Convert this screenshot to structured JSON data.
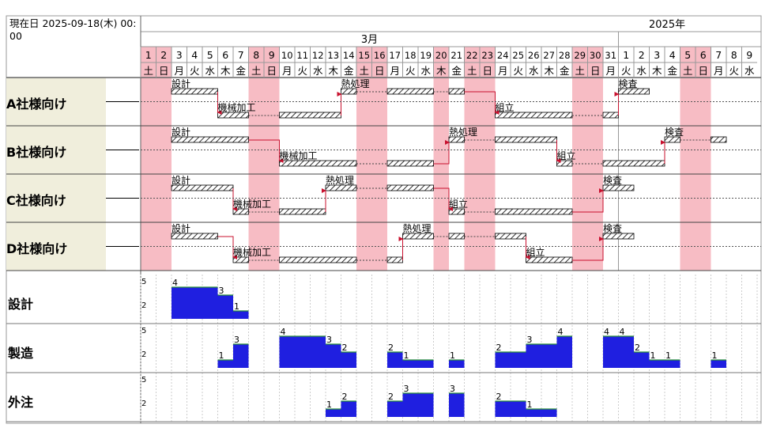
{
  "header": {
    "current_date": "現在日 2025-09-18(木) 00:00",
    "year_label": "2025年",
    "month_label": "3月"
  },
  "days": [
    {
      "d": "1",
      "w": "土",
      "holiday": true
    },
    {
      "d": "2",
      "w": "日",
      "holiday": true
    },
    {
      "d": "3",
      "w": "月",
      "holiday": false
    },
    {
      "d": "4",
      "w": "火",
      "holiday": false
    },
    {
      "d": "5",
      "w": "水",
      "holiday": false
    },
    {
      "d": "6",
      "w": "木",
      "holiday": false
    },
    {
      "d": "7",
      "w": "金",
      "holiday": false
    },
    {
      "d": "8",
      "w": "土",
      "holiday": true
    },
    {
      "d": "9",
      "w": "日",
      "holiday": true
    },
    {
      "d": "10",
      "w": "月",
      "holiday": false
    },
    {
      "d": "11",
      "w": "火",
      "holiday": false
    },
    {
      "d": "12",
      "w": "水",
      "holiday": false
    },
    {
      "d": "13",
      "w": "木",
      "holiday": false
    },
    {
      "d": "14",
      "w": "金",
      "holiday": false
    },
    {
      "d": "15",
      "w": "土",
      "holiday": true
    },
    {
      "d": "16",
      "w": "日",
      "holiday": true
    },
    {
      "d": "17",
      "w": "月",
      "holiday": false
    },
    {
      "d": "18",
      "w": "火",
      "holiday": false
    },
    {
      "d": "19",
      "w": "水",
      "holiday": false
    },
    {
      "d": "20",
      "w": "木",
      "holiday": true
    },
    {
      "d": "21",
      "w": "金",
      "holiday": false
    },
    {
      "d": "22",
      "w": "土",
      "holiday": true
    },
    {
      "d": "23",
      "w": "日",
      "holiday": true
    },
    {
      "d": "24",
      "w": "月",
      "holiday": false
    },
    {
      "d": "25",
      "w": "火",
      "holiday": false
    },
    {
      "d": "26",
      "w": "水",
      "holiday": false
    },
    {
      "d": "27",
      "w": "木",
      "holiday": false
    },
    {
      "d": "28",
      "w": "金",
      "holiday": false
    },
    {
      "d": "29",
      "w": "土",
      "holiday": true
    },
    {
      "d": "30",
      "w": "日",
      "holiday": true
    },
    {
      "d": "31",
      "w": "月",
      "holiday": false
    },
    {
      "d": "1",
      "w": "火",
      "holiday": false
    },
    {
      "d": "2",
      "w": "水",
      "holiday": false
    },
    {
      "d": "3",
      "w": "木",
      "holiday": false
    },
    {
      "d": "4",
      "w": "金",
      "holiday": false
    },
    {
      "d": "5",
      "w": "土",
      "holiday": true
    },
    {
      "d": "6",
      "w": "日",
      "holiday": true
    },
    {
      "d": "7",
      "w": "月",
      "holiday": false
    },
    {
      "d": "8",
      "w": "火",
      "holiday": false
    },
    {
      "d": "9",
      "w": "水",
      "holiday": false
    }
  ],
  "orders": [
    {
      "label": "A社様向け",
      "tasks": [
        {
          "name": "設計",
          "lane": 0,
          "segs": [
            [
              2,
              5
            ]
          ],
          "label_at": 2
        },
        {
          "name": "機械加工",
          "lane": 1,
          "segs": [
            [
              5,
              7
            ],
            [
              9,
              13
            ]
          ],
          "label_at": 5
        },
        {
          "name": "熱処理",
          "lane": 0,
          "segs": [
            [
              13,
              14
            ],
            [
              16,
              19
            ],
            [
              20,
              21
            ]
          ],
          "label_at": 13
        },
        {
          "name": "組立",
          "lane": 1,
          "segs": [
            [
              23,
              28
            ],
            [
              30,
              31
            ]
          ],
          "label_at": 23
        },
        {
          "name": "検査",
          "lane": 0,
          "segs": [
            [
              31,
              33
            ]
          ],
          "label_at": 31
        }
      ]
    },
    {
      "label": "B社様向け",
      "tasks": [
        {
          "name": "設計",
          "lane": 0,
          "segs": [
            [
              2,
              7
            ]
          ],
          "label_at": 2
        },
        {
          "name": "機械加工",
          "lane": 1,
          "segs": [
            [
              9,
              14
            ],
            [
              16,
              19
            ]
          ],
          "label_at": 9
        },
        {
          "name": "熱処理",
          "lane": 0,
          "segs": [
            [
              20,
              21
            ],
            [
              23,
              27
            ]
          ],
          "label_at": 20
        },
        {
          "name": "組立",
          "lane": 1,
          "segs": [
            [
              27,
              28
            ],
            [
              30,
              34
            ]
          ],
          "label_at": 27
        },
        {
          "name": "検査",
          "lane": 0,
          "segs": [
            [
              34,
              35
            ],
            [
              37,
              38
            ]
          ],
          "label_at": 34
        }
      ]
    },
    {
      "label": "C社様向け",
      "tasks": [
        {
          "name": "設計",
          "lane": 0,
          "segs": [
            [
              2,
              6
            ]
          ],
          "label_at": 2
        },
        {
          "name": "機械加工",
          "lane": 1,
          "segs": [
            [
              6,
              7
            ],
            [
              9,
              12
            ]
          ],
          "label_at": 6
        },
        {
          "name": "熱処理",
          "lane": 0,
          "segs": [
            [
              12,
              14
            ],
            [
              16,
              19
            ]
          ],
          "label_at": 12
        },
        {
          "name": "組立",
          "lane": 1,
          "segs": [
            [
              20,
              21
            ],
            [
              23,
              28
            ]
          ],
          "label_at": 20
        },
        {
          "name": "検査",
          "lane": 0,
          "segs": [
            [
              30,
              32
            ]
          ],
          "label_at": 30
        }
      ]
    },
    {
      "label": "D社様向け",
      "tasks": [
        {
          "name": "設計",
          "lane": 0,
          "segs": [
            [
              2,
              5
            ]
          ],
          "label_at": 2
        },
        {
          "name": "機械加工",
          "lane": 1,
          "segs": [
            [
              6,
              7
            ],
            [
              9,
              14
            ],
            [
              16,
              17
            ]
          ],
          "label_at": 6
        },
        {
          "name": "熱処理",
          "lane": 0,
          "segs": [
            [
              17,
              19
            ],
            [
              20,
              21
            ],
            [
              23,
              25
            ]
          ],
          "label_at": 17
        },
        {
          "name": "組立",
          "lane": 1,
          "segs": [
            [
              25,
              28
            ]
          ],
          "label_at": 25
        },
        {
          "name": "検査",
          "lane": 0,
          "segs": [
            [
              30,
              32
            ]
          ],
          "label_at": 30
        }
      ]
    }
  ],
  "load": [
    {
      "label": "設計",
      "ticks": [
        "5",
        "2"
      ],
      "levels": [
        [
          2,
          5,
          4
        ],
        [
          5,
          6,
          3
        ],
        [
          6,
          7,
          1
        ]
      ],
      "annotations": [
        {
          "at": 2,
          "text": "4"
        },
        {
          "at": 5,
          "text": "3"
        },
        {
          "at": 6,
          "text": "1"
        }
      ]
    },
    {
      "label": "製造",
      "ticks": [
        "5",
        "2"
      ],
      "levels": [
        [
          5,
          6,
          1
        ],
        [
          6,
          7,
          3
        ],
        [
          9,
          12,
          4
        ],
        [
          12,
          13,
          3
        ],
        [
          13,
          14,
          2
        ],
        [
          16,
          17,
          2
        ],
        [
          17,
          19,
          1
        ],
        [
          20,
          21,
          1
        ],
        [
          23,
          25,
          2
        ],
        [
          25,
          27,
          3
        ],
        [
          27,
          28,
          4
        ],
        [
          30,
          31,
          4
        ],
        [
          31,
          32,
          4
        ],
        [
          32,
          33,
          2
        ],
        [
          33,
          34,
          1
        ],
        [
          34,
          35,
          1
        ],
        [
          37,
          38,
          1
        ]
      ],
      "annotations": [
        {
          "at": 5,
          "text": "1"
        },
        {
          "at": 6,
          "text": "3"
        },
        {
          "at": 9,
          "text": "4"
        },
        {
          "at": 12,
          "text": "3"
        },
        {
          "at": 13,
          "text": "2"
        },
        {
          "at": 16,
          "text": "2"
        },
        {
          "at": 17,
          "text": "1"
        },
        {
          "at": 20,
          "text": "1"
        },
        {
          "at": 23,
          "text": "2"
        },
        {
          "at": 25,
          "text": "3"
        },
        {
          "at": 27,
          "text": "4"
        },
        {
          "at": 30,
          "text": "4"
        },
        {
          "at": 31,
          "text": "4"
        },
        {
          "at": 32,
          "text": "2"
        },
        {
          "at": 33,
          "text": "1"
        },
        {
          "at": 34,
          "text": "1"
        },
        {
          "at": 37,
          "text": "1"
        }
      ]
    },
    {
      "label": "外注",
      "ticks": [
        "5",
        "2"
      ],
      "levels": [
        [
          12,
          13,
          1
        ],
        [
          13,
          14,
          2
        ],
        [
          16,
          17,
          2
        ],
        [
          17,
          19,
          3
        ],
        [
          20,
          21,
          3
        ],
        [
          23,
          25,
          2
        ],
        [
          25,
          27,
          1
        ]
      ],
      "annotations": [
        {
          "at": 12,
          "text": "1"
        },
        {
          "at": 13,
          "text": "2"
        },
        {
          "at": 16,
          "text": "2"
        },
        {
          "at": 17,
          "text": "3"
        },
        {
          "at": 20,
          "text": "3"
        },
        {
          "at": 23,
          "text": "2"
        },
        {
          "at": 25,
          "text": "1"
        }
      ]
    }
  ],
  "colors": {
    "holiday": "#f7bcc4",
    "label_bg": "#f0eedc",
    "bar_fill": "#1f1fe0",
    "bar_top": "#2a8f3a",
    "link": "#c8102e",
    "hatch": "#000000"
  }
}
